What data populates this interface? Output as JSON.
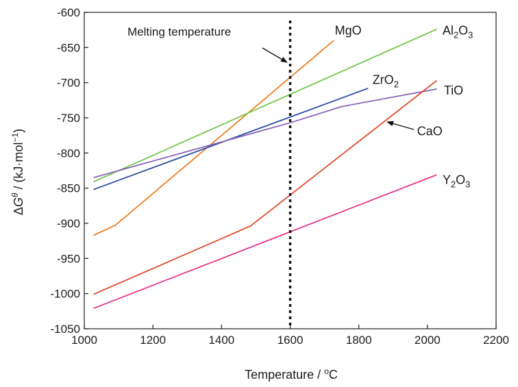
{
  "chart_data": {
    "type": "line",
    "xlabel": "Temperature / °C",
    "ylabel": "ΔGθ / (kJ·mol⁻¹)",
    "xlim": [
      1000,
      2200
    ],
    "ylim": [
      -1050,
      -600
    ],
    "xticks": [
      1000,
      1200,
      1400,
      1600,
      1800,
      2000,
      2200
    ],
    "yticks": [
      -600,
      -650,
      -700,
      -750,
      -800,
      -850,
      -900,
      -950,
      -1000,
      -1050
    ],
    "grid": false,
    "vline": {
      "x": 1600,
      "label": "Melting temperature"
    },
    "series": [
      {
        "name": "MgO",
        "color": "#ef7d22",
        "x": [
          1027,
          1090,
          1727
        ],
        "y": [
          -917,
          -903,
          -640
        ]
      },
      {
        "name": "Al2O3",
        "color": "#72c74a",
        "x": [
          1027,
          2027
        ],
        "y": [
          -841,
          -624
        ]
      },
      {
        "name": "ZrO2",
        "color": "#2e4ea3",
        "x": [
          1027,
          1827
        ],
        "y": [
          -852,
          -708
        ]
      },
      {
        "name": "TiO",
        "color": "#8b63b8",
        "x": [
          1027,
          1600,
          1750,
          2027
        ],
        "y": [
          -835,
          -757,
          -734,
          -709
        ]
      },
      {
        "name": "CaO",
        "color": "#e2492a",
        "x": [
          1027,
          1484,
          2027
        ],
        "y": [
          -1001,
          -904,
          -697
        ]
      },
      {
        "name": "Y2O3",
        "color": "#e8338a",
        "x": [
          1027,
          1227,
          2027
        ],
        "y": [
          -1021,
          -983,
          -831
        ]
      }
    ],
    "labels": [
      {
        "series": "MgO",
        "text": "MgO",
        "sub": "",
        "text2": "",
        "sub2": "",
        "at": [
          1730,
          -626
        ]
      },
      {
        "series": "Al2O3",
        "text": "Al",
        "sub": "2",
        "text2": "O",
        "sub2": "3",
        "at": [
          2044,
          -626
        ]
      },
      {
        "series": "ZrO2",
        "text": "ZrO",
        "sub": "2",
        "text2": "",
        "sub2": "",
        "at": [
          1840,
          -696
        ]
      },
      {
        "series": "TiO",
        "text": "TiO",
        "sub": "",
        "text2": "",
        "sub2": "",
        "at": [
          2048,
          -711
        ]
      },
      {
        "series": "CaO",
        "text": "CaO",
        "sub": "",
        "text2": "",
        "sub2": "",
        "at": [
          1970,
          -769
        ]
      },
      {
        "series": "Y2O3",
        "text": "Y",
        "sub": "2",
        "text2": "O",
        "sub2": "3",
        "at": [
          2044,
          -838
        ]
      }
    ]
  }
}
